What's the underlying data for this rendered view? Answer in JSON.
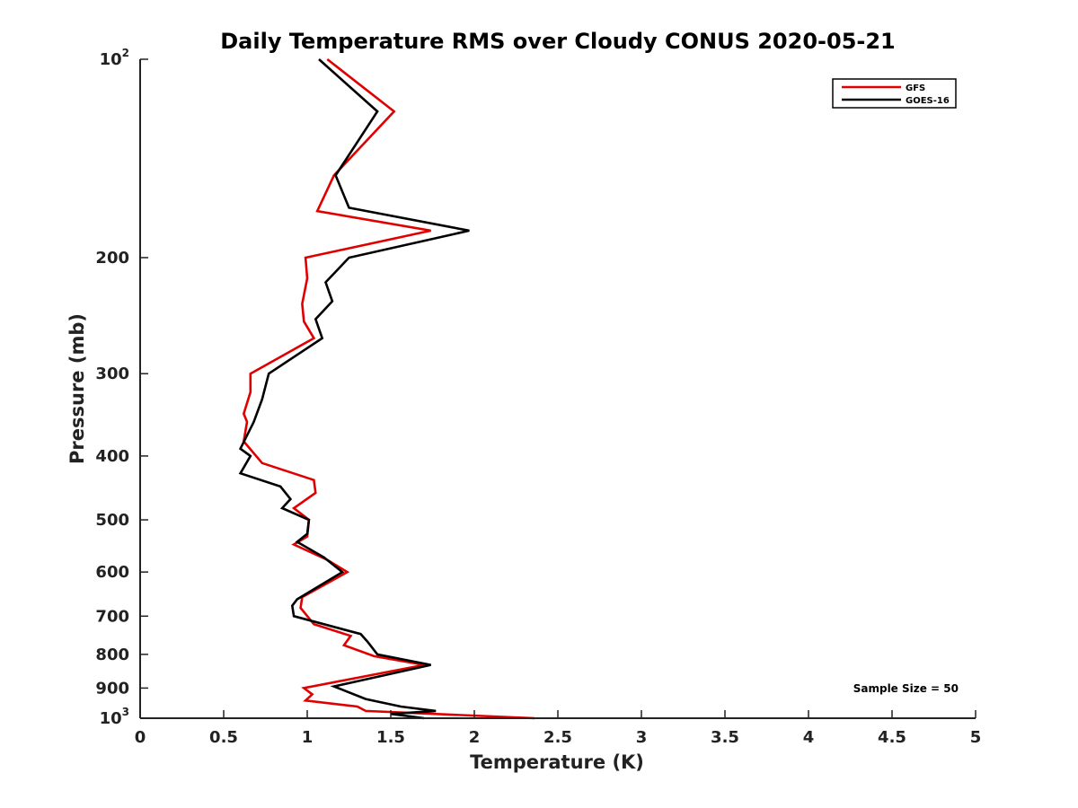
{
  "chart_data": {
    "type": "line",
    "title": "Daily Temperature RMS over Cloudy CONUS 2020-05-21",
    "xlabel": "Temperature (K)",
    "ylabel": "Pressure (mb)",
    "xlim": [
      0,
      5
    ],
    "ylim": [
      100,
      1000
    ],
    "y_scale": "log",
    "y_reversed": true,
    "grid": false,
    "legend_position": "top-right",
    "x_ticks": [
      {
        "value": 0,
        "label": "0"
      },
      {
        "value": 0.5,
        "label": "0.5"
      },
      {
        "value": 1,
        "label": "1"
      },
      {
        "value": 1.5,
        "label": "1.5"
      },
      {
        "value": 2,
        "label": "2"
      },
      {
        "value": 2.5,
        "label": "2.5"
      },
      {
        "value": 3,
        "label": "3"
      },
      {
        "value": 3.5,
        "label": "3.5"
      },
      {
        "value": 4,
        "label": "4"
      },
      {
        "value": 4.5,
        "label": "4.5"
      },
      {
        "value": 5,
        "label": "5"
      }
    ],
    "y_ticks": [
      {
        "value": 100,
        "base": "10",
        "exp": "2"
      },
      {
        "value": 200,
        "label": "200"
      },
      {
        "value": 300,
        "label": "300"
      },
      {
        "value": 400,
        "label": "400"
      },
      {
        "value": 500,
        "label": "500"
      },
      {
        "value": 600,
        "label": "600"
      },
      {
        "value": 700,
        "label": "700"
      },
      {
        "value": 800,
        "label": "800"
      },
      {
        "value": 900,
        "label": "900"
      },
      {
        "value": 1000,
        "base": "10",
        "exp": "3"
      }
    ],
    "annotation": "Sample Size = 50",
    "series": [
      {
        "name": "GFS",
        "color": "#e00000",
        "points": [
          {
            "x": 1.12,
            "p": 100
          },
          {
            "x": 1.52,
            "p": 120
          },
          {
            "x": 1.16,
            "p": 150
          },
          {
            "x": 1.06,
            "p": 170
          },
          {
            "x": 1.74,
            "p": 182
          },
          {
            "x": 0.99,
            "p": 200
          },
          {
            "x": 1.0,
            "p": 215
          },
          {
            "x": 0.97,
            "p": 235
          },
          {
            "x": 0.98,
            "p": 250
          },
          {
            "x": 1.04,
            "p": 265
          },
          {
            "x": 0.66,
            "p": 300
          },
          {
            "x": 0.66,
            "p": 320
          },
          {
            "x": 0.62,
            "p": 345
          },
          {
            "x": 0.64,
            "p": 355
          },
          {
            "x": 0.62,
            "p": 380
          },
          {
            "x": 0.73,
            "p": 410
          },
          {
            "x": 1.04,
            "p": 435
          },
          {
            "x": 1.05,
            "p": 455
          },
          {
            "x": 0.92,
            "p": 480
          },
          {
            "x": 1.01,
            "p": 500
          },
          {
            "x": 1.0,
            "p": 530
          },
          {
            "x": 0.92,
            "p": 545
          },
          {
            "x": 1.12,
            "p": 575
          },
          {
            "x": 1.24,
            "p": 600
          },
          {
            "x": 0.97,
            "p": 655
          },
          {
            "x": 0.96,
            "p": 680
          },
          {
            "x": 1.04,
            "p": 720
          },
          {
            "x": 1.26,
            "p": 750
          },
          {
            "x": 1.22,
            "p": 775
          },
          {
            "x": 1.4,
            "p": 805
          },
          {
            "x": 1.7,
            "p": 830
          },
          {
            "x": 0.98,
            "p": 900
          },
          {
            "x": 1.03,
            "p": 920
          },
          {
            "x": 0.99,
            "p": 940
          },
          {
            "x": 1.3,
            "p": 960
          },
          {
            "x": 1.35,
            "p": 975
          },
          {
            "x": 2.36,
            "p": 1000
          }
        ]
      },
      {
        "name": "GOES-16",
        "color": "#000000",
        "points": [
          {
            "x": 1.07,
            "p": 100
          },
          {
            "x": 1.42,
            "p": 120
          },
          {
            "x": 1.17,
            "p": 150
          },
          {
            "x": 1.25,
            "p": 168
          },
          {
            "x": 1.97,
            "p": 182
          },
          {
            "x": 1.25,
            "p": 200
          },
          {
            "x": 1.11,
            "p": 218
          },
          {
            "x": 1.15,
            "p": 233
          },
          {
            "x": 1.05,
            "p": 248
          },
          {
            "x": 1.09,
            "p": 265
          },
          {
            "x": 0.77,
            "p": 300
          },
          {
            "x": 0.73,
            "p": 328
          },
          {
            "x": 0.68,
            "p": 355
          },
          {
            "x": 0.6,
            "p": 390
          },
          {
            "x": 0.66,
            "p": 400
          },
          {
            "x": 0.6,
            "p": 425
          },
          {
            "x": 0.84,
            "p": 445
          },
          {
            "x": 0.9,
            "p": 465
          },
          {
            "x": 0.85,
            "p": 480
          },
          {
            "x": 1.01,
            "p": 500
          },
          {
            "x": 1.0,
            "p": 525
          },
          {
            "x": 0.94,
            "p": 540
          },
          {
            "x": 1.1,
            "p": 570
          },
          {
            "x": 1.21,
            "p": 600
          },
          {
            "x": 0.94,
            "p": 660
          },
          {
            "x": 0.91,
            "p": 675
          },
          {
            "x": 0.92,
            "p": 700
          },
          {
            "x": 1.32,
            "p": 745
          },
          {
            "x": 1.36,
            "p": 765
          },
          {
            "x": 1.42,
            "p": 800
          },
          {
            "x": 1.74,
            "p": 830
          },
          {
            "x": 1.16,
            "p": 895
          },
          {
            "x": 1.35,
            "p": 935
          },
          {
            "x": 1.56,
            "p": 960
          },
          {
            "x": 1.77,
            "p": 975
          },
          {
            "x": 1.5,
            "p": 985
          },
          {
            "x": 1.7,
            "p": 1000
          }
        ]
      }
    ]
  }
}
